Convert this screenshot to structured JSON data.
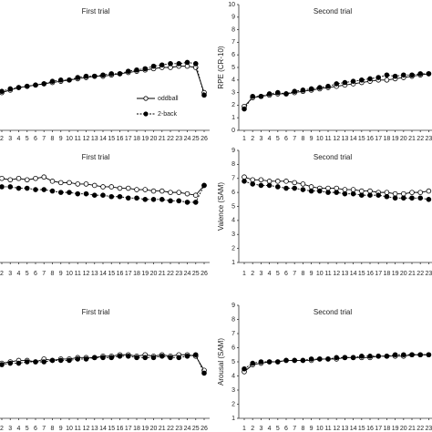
{
  "chart_data": [
    {
      "type": "line",
      "title": "First trial",
      "categories": [
        "2",
        "3",
        "4",
        "5",
        "6",
        "7",
        "8",
        "9",
        "10",
        "11",
        "12",
        "13",
        "14",
        "15",
        "16",
        "17",
        "18",
        "19",
        "20",
        "21",
        "22",
        "23",
        "24",
        "25",
        "26"
      ],
      "ylim": [
        0,
        10
      ],
      "series": [
        {
          "name": "oddball",
          "color": "#000000",
          "marker": "open",
          "dash": false,
          "values": [
            3.0,
            3.2,
            3.4,
            3.5,
            3.6,
            3.7,
            3.8,
            3.9,
            4.0,
            4.1,
            4.2,
            4.3,
            4.3,
            4.4,
            4.5,
            4.6,
            4.7,
            4.8,
            4.9,
            5.0,
            5.0,
            5.1,
            5.1,
            5.0,
            3.0
          ]
        },
        {
          "name": "2-back",
          "color": "#000000",
          "marker": "filled",
          "dash": true,
          "values": [
            3.1,
            3.3,
            3.4,
            3.5,
            3.6,
            3.7,
            3.9,
            4.0,
            4.0,
            4.2,
            4.3,
            4.3,
            4.4,
            4.5,
            4.5,
            4.7,
            4.8,
            4.9,
            5.1,
            5.2,
            5.3,
            5.3,
            5.4,
            5.3,
            2.8
          ]
        }
      ]
    },
    {
      "type": "line",
      "title": "Second trial",
      "ylabel": "RPE (CR-10)",
      "categories": [
        "1",
        "2",
        "3",
        "4",
        "5",
        "6",
        "7",
        "8",
        "9",
        "10",
        "11",
        "12",
        "13",
        "14",
        "15",
        "16",
        "17",
        "18",
        "19",
        "20",
        "21",
        "22",
        "23"
      ],
      "ylim": [
        0,
        10
      ],
      "yticks": [
        0,
        1,
        2,
        3,
        4,
        5,
        6,
        7,
        8,
        9,
        10
      ],
      "series": [
        {
          "color": "#000000",
          "marker": "open",
          "dash": false,
          "values": [
            1.9,
            2.6,
            2.7,
            2.8,
            2.9,
            2.9,
            3.0,
            3.1,
            3.2,
            3.3,
            3.4,
            3.5,
            3.6,
            3.7,
            3.8,
            3.9,
            4.0,
            4.0,
            4.1,
            4.2,
            4.3,
            4.4,
            4.5
          ]
        },
        {
          "color": "#000000",
          "marker": "filled",
          "dash": true,
          "values": [
            1.7,
            2.7,
            2.7,
            2.9,
            3.0,
            2.9,
            3.1,
            3.2,
            3.3,
            3.4,
            3.5,
            3.7,
            3.8,
            3.9,
            4.0,
            4.1,
            4.2,
            4.4,
            4.3,
            4.4,
            4.4,
            4.5,
            4.5
          ]
        }
      ]
    },
    {
      "type": "line",
      "title": "First trial",
      "categories": [
        "2",
        "3",
        "4",
        "5",
        "6",
        "7",
        "8",
        "9",
        "10",
        "11",
        "12",
        "13",
        "14",
        "15",
        "16",
        "17",
        "18",
        "19",
        "20",
        "21",
        "22",
        "23",
        "24",
        "25",
        "26"
      ],
      "ylim": [
        1,
        9
      ],
      "series": [
        {
          "color": "#000000",
          "marker": "open",
          "dash": false,
          "values": [
            7.0,
            6.9,
            7.0,
            6.9,
            7.0,
            7.1,
            6.8,
            6.7,
            6.7,
            6.6,
            6.6,
            6.5,
            6.4,
            6.4,
            6.3,
            6.3,
            6.2,
            6.2,
            6.1,
            6.1,
            6.0,
            6.0,
            5.9,
            5.8,
            6.5
          ]
        },
        {
          "color": "#000000",
          "marker": "filled",
          "dash": true,
          "values": [
            6.4,
            6.4,
            6.3,
            6.3,
            6.2,
            6.2,
            6.1,
            6.0,
            6.0,
            5.9,
            5.9,
            5.8,
            5.8,
            5.7,
            5.7,
            5.6,
            5.6,
            5.5,
            5.5,
            5.5,
            5.4,
            5.4,
            5.3,
            5.3,
            6.5
          ]
        }
      ]
    },
    {
      "type": "line",
      "title": "Second trial",
      "ylabel": "Valence (SAM)",
      "categories": [
        "1",
        "2",
        "3",
        "4",
        "5",
        "6",
        "7",
        "8",
        "9",
        "10",
        "11",
        "12",
        "13",
        "14",
        "15",
        "16",
        "17",
        "18",
        "19",
        "20",
        "21",
        "22",
        "23"
      ],
      "ylim": [
        1,
        9
      ],
      "yticks": [
        1,
        2,
        3,
        4,
        5,
        6,
        7,
        8,
        9
      ],
      "series": [
        {
          "color": "#000000",
          "marker": "open",
          "dash": false,
          "values": [
            7.1,
            6.9,
            6.9,
            6.8,
            6.8,
            6.8,
            6.7,
            6.6,
            6.4,
            6.3,
            6.3,
            6.3,
            6.2,
            6.2,
            6.1,
            6.1,
            6.0,
            6.0,
            5.9,
            5.9,
            6.0,
            6.0,
            6.1
          ]
        },
        {
          "color": "#000000",
          "marker": "filled",
          "dash": true,
          "values": [
            6.8,
            6.6,
            6.5,
            6.5,
            6.4,
            6.3,
            6.3,
            6.2,
            6.1,
            6.1,
            6.0,
            6.0,
            5.9,
            5.9,
            5.8,
            5.8,
            5.8,
            5.7,
            5.6,
            5.6,
            5.6,
            5.6,
            5.5
          ]
        }
      ]
    },
    {
      "type": "line",
      "title": "First trial",
      "categories": [
        "2",
        "3",
        "4",
        "5",
        "6",
        "7",
        "8",
        "9",
        "10",
        "11",
        "12",
        "13",
        "14",
        "15",
        "16",
        "17",
        "18",
        "19",
        "20",
        "21",
        "22",
        "23",
        "24",
        "25",
        "26"
      ],
      "ylim": [
        1,
        9
      ],
      "series": [
        {
          "color": "#000000",
          "marker": "open",
          "dash": false,
          "values": [
            4.9,
            5.0,
            5.1,
            5.1,
            5.0,
            5.2,
            5.1,
            5.2,
            5.2,
            5.3,
            5.3,
            5.3,
            5.4,
            5.4,
            5.5,
            5.5,
            5.4,
            5.5,
            5.4,
            5.5,
            5.4,
            5.5,
            5.5,
            5.4,
            4.4
          ]
        },
        {
          "color": "#000000",
          "marker": "filled",
          "dash": true,
          "values": [
            4.8,
            4.9,
            4.9,
            5.0,
            5.0,
            5.0,
            5.1,
            5.1,
            5.1,
            5.2,
            5.2,
            5.3,
            5.3,
            5.3,
            5.4,
            5.4,
            5.3,
            5.3,
            5.3,
            5.4,
            5.3,
            5.3,
            5.4,
            5.5,
            4.2
          ]
        }
      ]
    },
    {
      "type": "line",
      "title": "Second trial",
      "ylabel": "Arousal (SAM)",
      "categories": [
        "1",
        "2",
        "3",
        "4",
        "5",
        "6",
        "7",
        "8",
        "9",
        "10",
        "11",
        "12",
        "13",
        "14",
        "15",
        "16",
        "17",
        "18",
        "19",
        "20",
        "21",
        "22",
        "23"
      ],
      "ylim": [
        1,
        9
      ],
      "yticks": [
        1,
        2,
        3,
        4,
        5,
        6,
        7,
        8,
        9
      ],
      "series": [
        {
          "color": "#000000",
          "marker": "open",
          "dash": false,
          "values": [
            4.3,
            4.8,
            4.9,
            5.0,
            5.0,
            5.1,
            5.1,
            5.1,
            5.1,
            5.2,
            5.2,
            5.2,
            5.3,
            5.3,
            5.3,
            5.3,
            5.4,
            5.4,
            5.4,
            5.4,
            5.5,
            5.5,
            5.5
          ]
        },
        {
          "color": "#000000",
          "marker": "filled",
          "dash": true,
          "values": [
            4.5,
            4.9,
            5.0,
            5.0,
            5.0,
            5.1,
            5.1,
            5.1,
            5.2,
            5.2,
            5.2,
            5.3,
            5.3,
            5.3,
            5.4,
            5.4,
            5.4,
            5.4,
            5.5,
            5.5,
            5.5,
            5.5,
            5.5
          ]
        }
      ]
    }
  ]
}
